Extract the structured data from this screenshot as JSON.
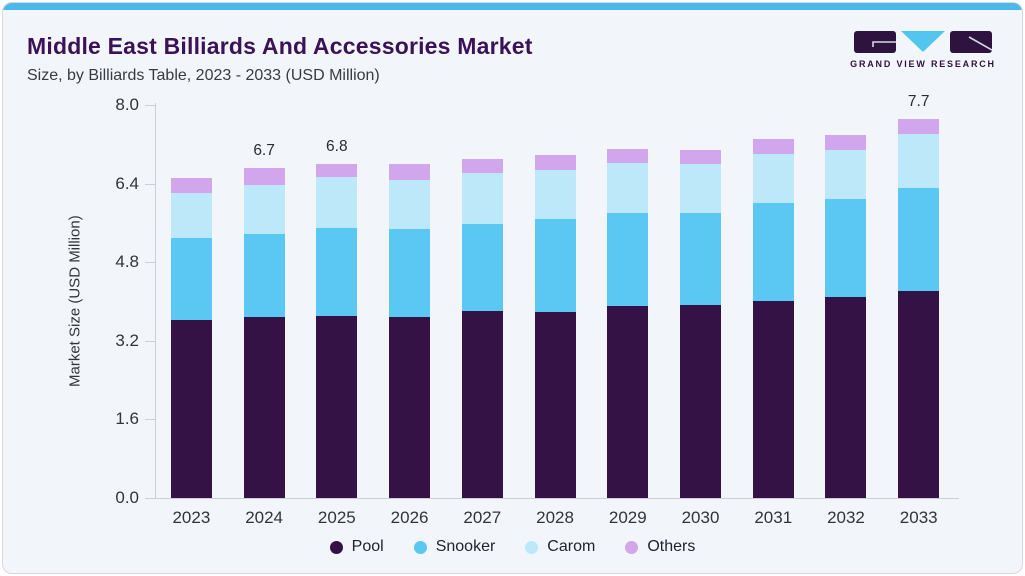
{
  "header": {
    "title": "Middle East Billiards And Accessories Market",
    "subtitle": "Size, by Billiards Table, 2023 - 2033 (USD Million)"
  },
  "logo": {
    "text": "GRAND VIEW RESEARCH"
  },
  "colors": {
    "card_bg": "#f2f6fa",
    "card_border": "#d9d5e8",
    "top_accent": "#4ab9e9",
    "title": "#3b1257",
    "subtitle": "#3a3a42",
    "axis_line": "#c9ced7",
    "tick_text": "#33333c",
    "bar_label_text": "#2b2b33",
    "logo_purple": "#2e1340",
    "logo_cyan": "#53c6f0"
  },
  "chart_data": {
    "type": "bar",
    "stacked": true,
    "title": "Middle East Billiards And Accessories Market Size, by Billiards Table, 2023 - 2033 (USD Million)",
    "categories": [
      "2023",
      "2024",
      "2025",
      "2026",
      "2027",
      "2028",
      "2029",
      "2030",
      "2031",
      "2032",
      "2033"
    ],
    "series": [
      {
        "name": "Pool",
        "color": "#341246",
        "values": [
          3.62,
          3.68,
          3.7,
          3.68,
          3.81,
          3.79,
          3.9,
          3.93,
          4.0,
          4.1,
          4.21
        ]
      },
      {
        "name": "Snooker",
        "color": "#5bc7f3",
        "values": [
          1.66,
          1.69,
          1.79,
          1.8,
          1.77,
          1.9,
          1.9,
          1.88,
          1.99,
          2.0,
          2.09
        ]
      },
      {
        "name": "Carom",
        "color": "#bde8f9",
        "values": [
          0.92,
          0.99,
          1.04,
          1.0,
          1.03,
          1.0,
          1.01,
          1.0,
          1.0,
          0.99,
          1.1
        ]
      },
      {
        "name": "Others",
        "color": "#d2a6ec",
        "values": [
          0.3,
          0.34,
          0.27,
          0.32,
          0.29,
          0.31,
          0.29,
          0.29,
          0.31,
          0.31,
          0.3
        ]
      }
    ],
    "totals": [
      6.5,
      6.7,
      6.8,
      6.8,
      6.9,
      7.0,
      7.1,
      7.1,
      7.3,
      7.4,
      7.7
    ],
    "bar_value_labels": {
      "2024": "6.7",
      "2025": "6.8",
      "2033": "7.7"
    },
    "xlabel": "",
    "ylabel": "Market Size (USD Million)",
    "ylim": [
      0.0,
      8.0
    ],
    "yticks": [
      "0.0",
      "1.6",
      "3.2",
      "4.8",
      "6.4",
      "8.0"
    ],
    "grid": false,
    "legend_position": "bottom"
  }
}
